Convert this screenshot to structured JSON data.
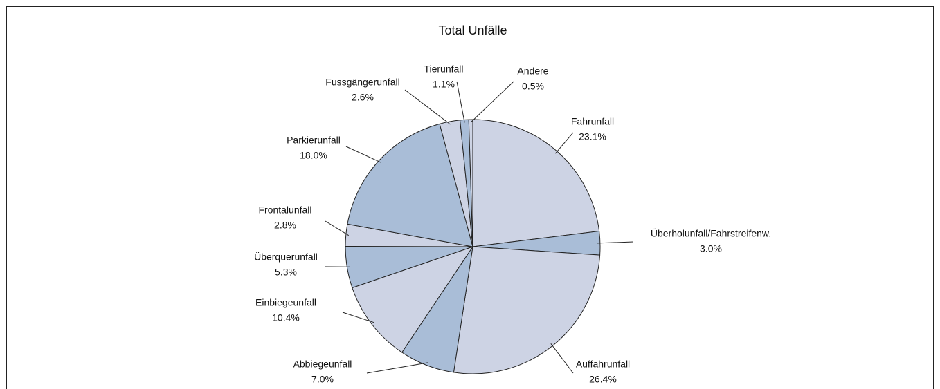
{
  "chart_data": {
    "type": "pie",
    "title": "Total Unfälle",
    "categories": [
      "Fahrunfall",
      "Überholunfall/Fahrstreifenw.",
      "Auffahrunfall",
      "Abbiegeunfall",
      "Einbiegeunfall",
      "Überquerunfall",
      "Frontalunfall",
      "Parkierunfall",
      "Fussgängerunfall",
      "Tierunfall",
      "Andere"
    ],
    "values": [
      23.1,
      3.0,
      26.4,
      7.0,
      10.4,
      5.3,
      2.8,
      18.0,
      2.6,
      1.1,
      0.5
    ],
    "value_labels": [
      "23.1%",
      "3.0%",
      "26.4%",
      "7.0%",
      "10.4%",
      "5.3%",
      "2.8%",
      "18.0%",
      "2.6%",
      "1.1%",
      "0.5%"
    ],
    "colors": [
      "#cdd3e4",
      "#a9bdd7",
      "#cdd3e4",
      "#a9bdd7",
      "#cdd3e4",
      "#a9bdd7",
      "#cdd3e4",
      "#a9bdd7",
      "#cdd3e4",
      "#a9bdd7",
      "#cdd3e4"
    ]
  }
}
